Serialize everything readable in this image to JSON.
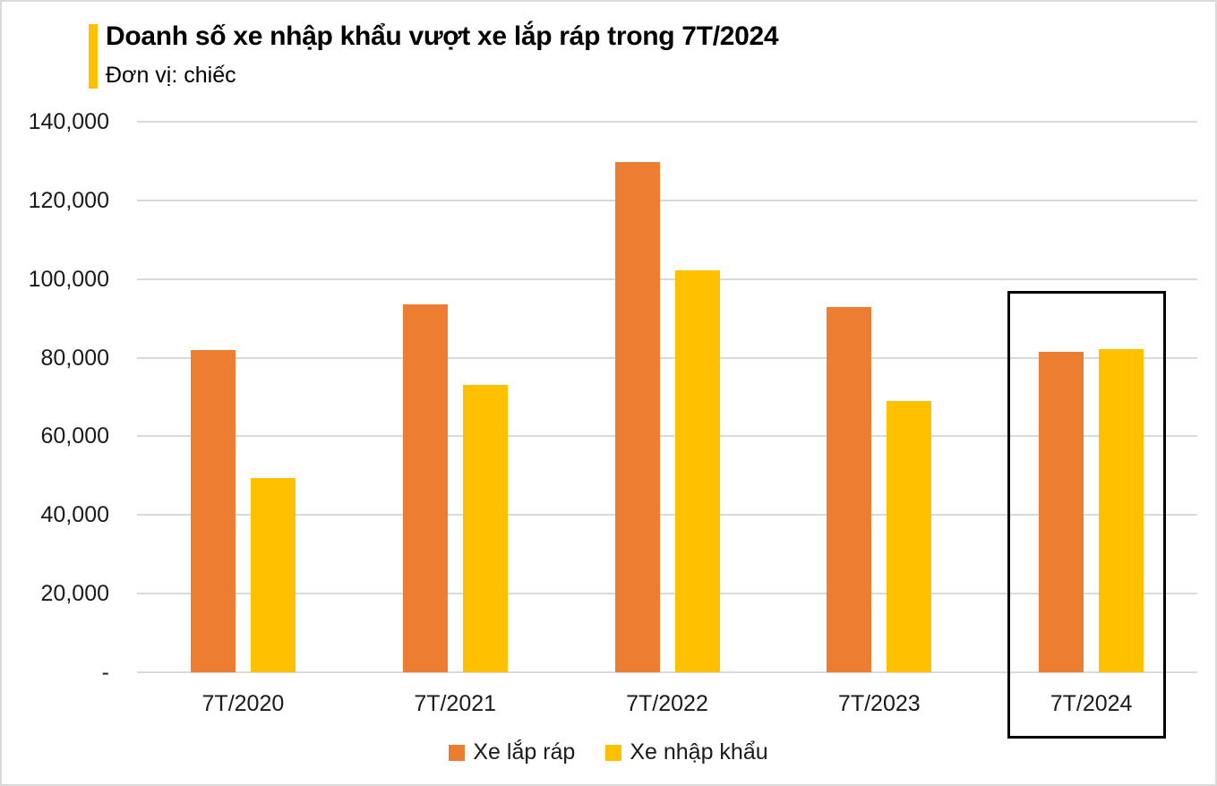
{
  "header": {
    "title": "Doanh số xe nhập khẩu vượt xe lắp ráp trong 7T/2024",
    "subtitle": "Đơn vị: chiếc",
    "accent_color": "#FFC000"
  },
  "chart_data": {
    "type": "bar",
    "title": "Doanh số xe nhập khẩu vượt xe lắp ráp trong 7T/2024",
    "unit_label": "Đơn vị: chiếc",
    "categories": [
      "7T/2020",
      "7T/2021",
      "7T/2022",
      "7T/2023",
      "7T/2024"
    ],
    "series": [
      {
        "name": "Xe lắp ráp",
        "color": "#ED7D31",
        "values": [
          82000,
          93500,
          129800,
          93000,
          81500
        ]
      },
      {
        "name": "Xe nhập khẩu",
        "color": "#FFC000",
        "values": [
          49500,
          73000,
          102200,
          68900,
          82200
        ]
      }
    ],
    "y_ticks": [
      "140,000",
      "120,000",
      "100,000",
      "80,000",
      "60,000",
      "40,000",
      "20,000",
      "-"
    ],
    "ylim": [
      0,
      140000
    ],
    "grid": true,
    "gridline_color": "#d9d9d9",
    "legend_position": "bottom",
    "highlighted_category": "7T/2024"
  },
  "colors": {
    "assembled": "#ED7D31",
    "imported": "#FFC000",
    "grid": "#d9d9d9",
    "axis_text": "#1a1a1a",
    "highlight_border": "#000000",
    "title_accent": "#FFC000"
  }
}
